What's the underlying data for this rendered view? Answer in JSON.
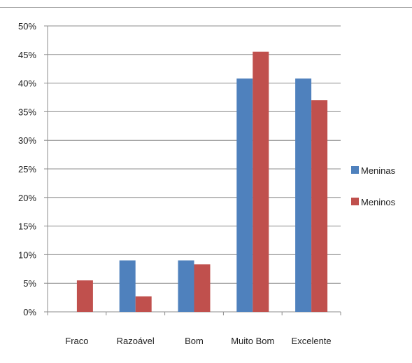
{
  "chart_data": {
    "type": "bar",
    "categories": [
      "Fraco",
      "Razoável",
      "Bom",
      "Muito Bom",
      "Excelente"
    ],
    "series": [
      {
        "name": "Meninas",
        "color": "#4f81bd",
        "values": [
          0,
          9,
          9,
          40.8,
          40.8
        ]
      },
      {
        "name": "Meninos",
        "color": "#c0504d",
        "values": [
          5.5,
          2.7,
          8.3,
          45.5,
          37
        ]
      }
    ],
    "y_ticks": [
      "0%",
      "5%",
      "10%",
      "15%",
      "20%",
      "25%",
      "30%",
      "35%",
      "40%",
      "45%",
      "50%"
    ],
    "ylim": [
      0,
      50
    ],
    "y_unit": "%",
    "grid": true,
    "legend_position": "right"
  }
}
